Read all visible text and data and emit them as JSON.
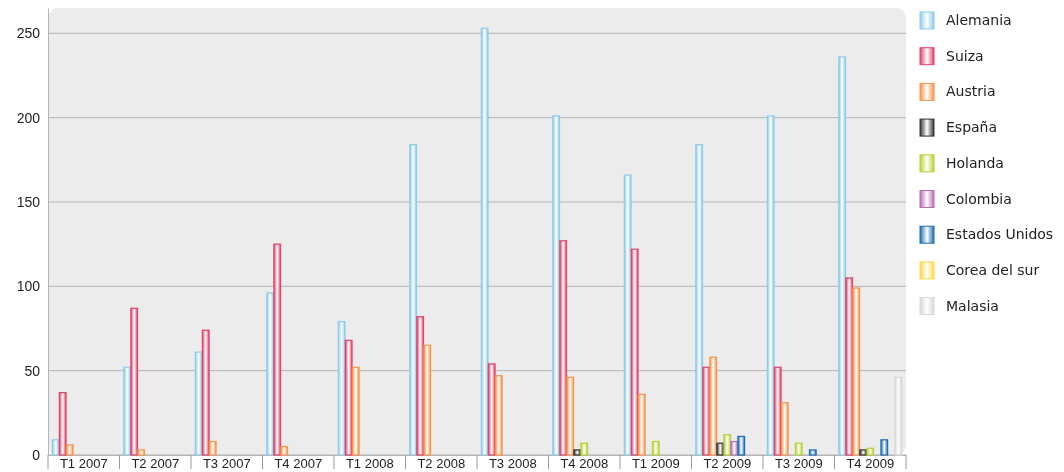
{
  "chart_data": {
    "type": "bar",
    "categories": [
      "T1 2007",
      "T2 2007",
      "T3 2007",
      "T4 2007",
      "T1 2008",
      "T2 2008",
      "T3 2008",
      "T4 2008",
      "T1 2009",
      "T2 2009",
      "T3 2009",
      "T4 2009"
    ],
    "series": [
      {
        "name": "Alemania",
        "color": "#8ecbea",
        "values": [
          9,
          52,
          61,
          96,
          79,
          184,
          253,
          201,
          166,
          184,
          201,
          236
        ]
      },
      {
        "name": "Suiza",
        "color": "#e0436a",
        "values": [
          37,
          87,
          74,
          125,
          68,
          82,
          54,
          127,
          122,
          52,
          52,
          105
        ]
      },
      {
        "name": "Austria",
        "color": "#f7944a",
        "values": [
          6,
          3,
          8,
          5,
          52,
          65,
          47,
          46,
          36,
          58,
          31,
          99
        ]
      },
      {
        "name": "España",
        "color": "#333333",
        "values": [
          null,
          null,
          null,
          null,
          null,
          null,
          null,
          3,
          null,
          7,
          null,
          3
        ]
      },
      {
        "name": "Holanda",
        "color": "#b5d334",
        "values": [
          null,
          null,
          null,
          null,
          null,
          null,
          null,
          7,
          8,
          12,
          7,
          4
        ]
      },
      {
        "name": "Colombia",
        "color": "#b86fb0",
        "values": [
          null,
          null,
          null,
          null,
          null,
          null,
          null,
          null,
          null,
          8,
          null,
          null
        ]
      },
      {
        "name": "Estados Unidos",
        "color": "#1c6db5",
        "values": [
          null,
          null,
          null,
          null,
          null,
          null,
          null,
          null,
          null,
          11,
          3,
          9
        ]
      },
      {
        "name": "Corea del sur",
        "color": "#fdd84a",
        "values": [
          null,
          null,
          null,
          null,
          null,
          null,
          null,
          null,
          null,
          null,
          null,
          null
        ]
      },
      {
        "name": "Malasia",
        "color": "#d8d8d8",
        "values": [
          null,
          null,
          null,
          null,
          null,
          null,
          null,
          null,
          null,
          null,
          null,
          46
        ]
      }
    ],
    "ylim": [
      0,
      265
    ],
    "yticks": [
      0,
      50,
      100,
      150,
      200,
      250
    ],
    "grid": "y",
    "legend": "right"
  }
}
